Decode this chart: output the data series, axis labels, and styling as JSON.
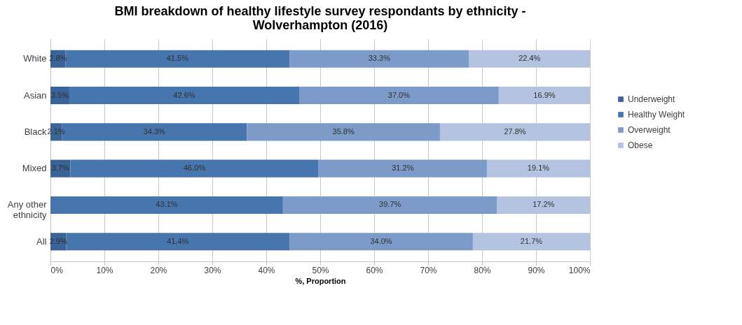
{
  "chart_data": {
    "type": "bar",
    "orientation": "horizontal",
    "stacked": true,
    "title": "BMI breakdown of healthy lifestyle survey respondants by ethnicity - Wolverhampton (2016)",
    "xlabel": "%, Proportion",
    "categories": [
      "White",
      "Asian",
      "Black",
      "Mixed",
      "Any other ethnicity",
      "All"
    ],
    "series": [
      {
        "name": "Underweight",
        "color": "#3a6397",
        "values": [
          2.8,
          3.5,
          2.1,
          3.7,
          null,
          2.9
        ],
        "value_labels": [
          "2.8%",
          "3.5%",
          "2.1%",
          "3.7%",
          null,
          "2.9%"
        ]
      },
      {
        "name": "Healthy Weight",
        "color": "#4775ae",
        "values": [
          41.5,
          42.6,
          34.3,
          46.0,
          43.1,
          41.4
        ],
        "value_labels": [
          "41.5%",
          "42.6%",
          "34.3%",
          "46.0%",
          "43.1%",
          "41.4%"
        ]
      },
      {
        "name": "Overweight",
        "color": "#7c9bc8",
        "values": [
          33.3,
          37.0,
          35.8,
          31.2,
          39.7,
          34.0
        ],
        "value_labels": [
          "33.3%",
          "37.0%",
          "35.8%",
          "31.2%",
          "39.7%",
          "34.0%"
        ]
      },
      {
        "name": "Obese",
        "color": "#b4c3df",
        "values": [
          22.4,
          16.9,
          27.8,
          19.1,
          17.2,
          21.7
        ],
        "value_labels": [
          "22.4%",
          "16.9%",
          "27.8%",
          "19.1%",
          "17.2%",
          "21.7%"
        ]
      }
    ],
    "xlim": [
      0,
      100
    ],
    "xticks": [
      {
        "value": 0,
        "label": "0%"
      },
      {
        "value": 10,
        "label": "10%"
      },
      {
        "value": 20,
        "label": "20%"
      },
      {
        "value": 30,
        "label": "30%"
      },
      {
        "value": 40,
        "label": "40%"
      },
      {
        "value": 50,
        "label": "50%"
      },
      {
        "value": 60,
        "label": "60%"
      },
      {
        "value": 70,
        "label": "70%"
      },
      {
        "value": 80,
        "label": "80%"
      },
      {
        "value": 90,
        "label": "90%"
      },
      {
        "value": 100,
        "label": "100%"
      }
    ],
    "grid": "x",
    "legend": "right"
  }
}
